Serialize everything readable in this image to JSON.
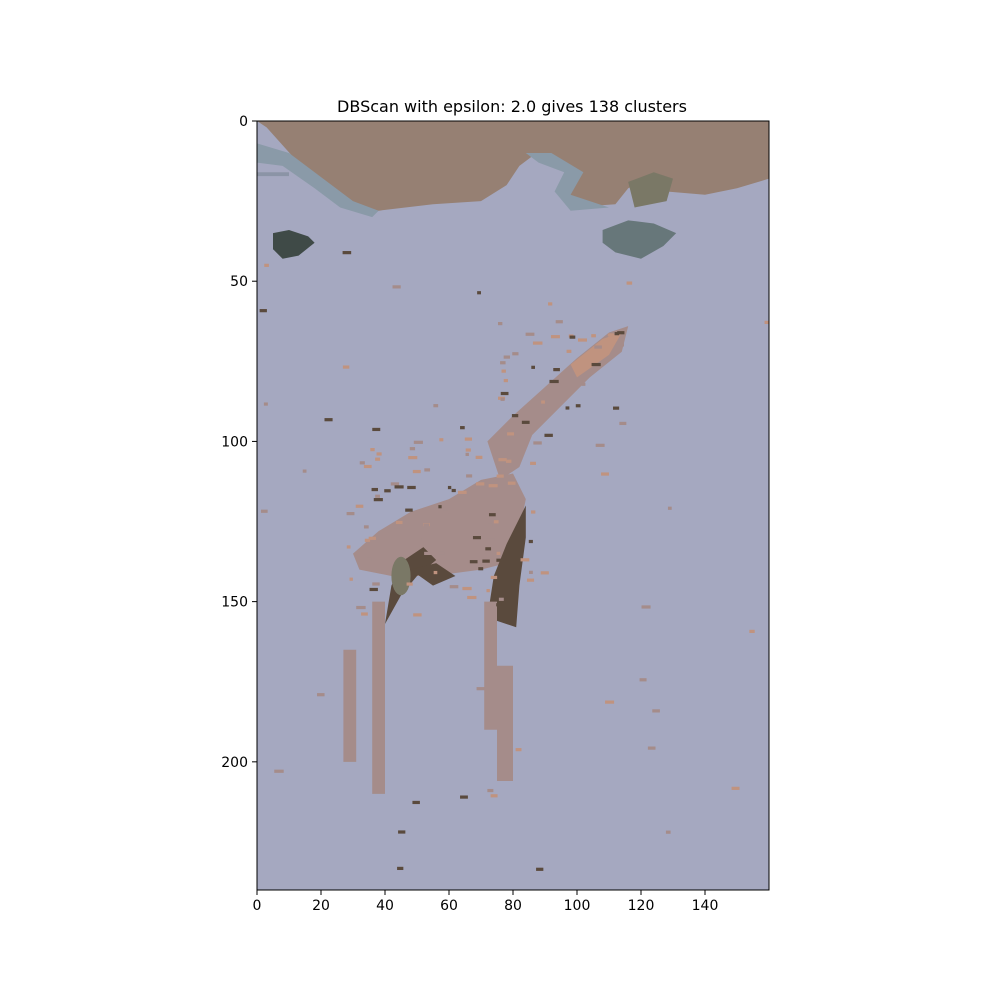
{
  "chart_data": {
    "type": "heatmap",
    "title": "DBScan with epsilon: 2.0 gives 138 clusters",
    "xlabel": "",
    "ylabel": "",
    "xlim": [
      0,
      160
    ],
    "ylim": [
      240,
      0
    ],
    "x_ticks": [
      0,
      20,
      40,
      60,
      80,
      100,
      120,
      140
    ],
    "y_ticks": [
      0,
      50,
      100,
      150,
      200
    ],
    "grid": false,
    "image_description": "Clustered image of a giraffe standing on a light grey-blue background under a brown ridge",
    "colors": {
      "background_cluster": "#a5a8c0",
      "ridge_cluster": "#968073",
      "dark_blob_cluster": "#3f4a47",
      "grey_green_blob_cluster": "#67777a",
      "body_dark_cluster": "#5a4a3d",
      "body_light_cluster": "#a58c8a",
      "accent_cluster": "#c0937f",
      "ridge_edge_cluster": "#8a9aa8",
      "olive_cluster": "#7a7866"
    }
  }
}
